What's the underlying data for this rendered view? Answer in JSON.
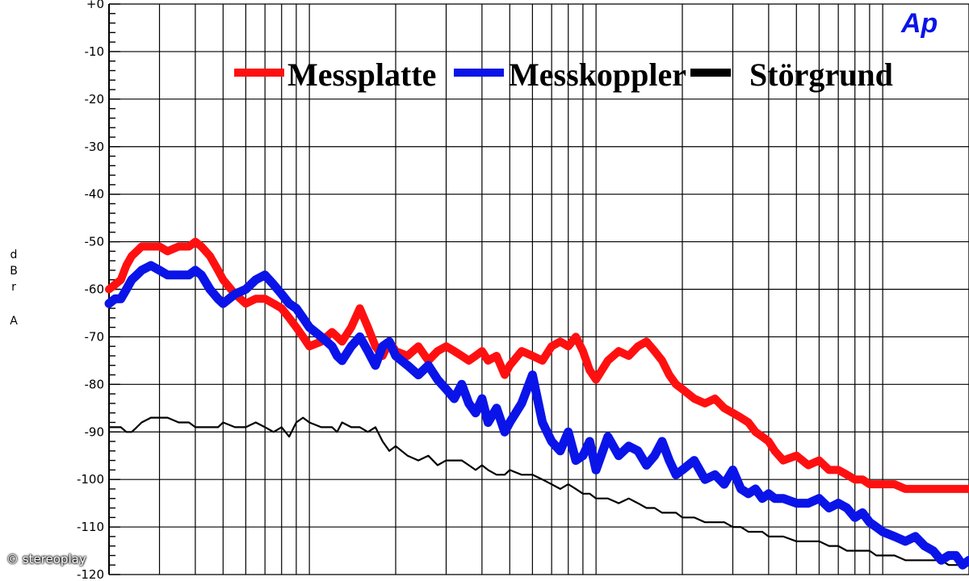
{
  "watermark": "© stereoplay",
  "logo": "Ap",
  "chart_data": {
    "type": "line",
    "title": "",
    "ylabel": "dBr A",
    "xlabel": "",
    "xscale": "log",
    "xlim": [
      20,
      20000
    ],
    "ylim": [
      -120,
      0
    ],
    "yticks": [
      "+0",
      "-10",
      "-20",
      "-30",
      "-40",
      "-50",
      "-60",
      "-70",
      "-80",
      "-90",
      "-100",
      "-110",
      "-120"
    ],
    "grid": true,
    "legend_position": "top",
    "colors": {
      "Messplatte": "#ff1010",
      "Messkoppler": "#0a14e8",
      "Störgrund": "#000000",
      "grid": "#000000"
    },
    "series": [
      {
        "name": "Messplatte",
        "x": [
          20,
          21,
          22,
          23,
          24,
          25,
          26,
          28,
          30,
          32,
          35,
          38,
          40,
          42,
          45,
          48,
          50,
          55,
          60,
          65,
          70,
          75,
          80,
          85,
          90,
          95,
          100,
          110,
          120,
          125,
          130,
          140,
          150,
          160,
          170,
          180,
          190,
          200,
          220,
          240,
          260,
          280,
          300,
          320,
          340,
          360,
          380,
          400,
          420,
          450,
          480,
          500,
          550,
          600,
          650,
          700,
          750,
          800,
          850,
          900,
          950,
          1000,
          1100,
          1200,
          1300,
          1400,
          1500,
          1600,
          1700,
          1800,
          1900,
          2000,
          2200,
          2400,
          2600,
          2800,
          3000,
          3200,
          3400,
          3600,
          3800,
          4000,
          4200,
          4500,
          5000,
          5500,
          6000,
          6500,
          7000,
          7500,
          8000,
          8500,
          9000,
          9500,
          10000,
          11000,
          12000,
          13000,
          14000,
          15000,
          16000,
          17000,
          18000,
          19000,
          20000
        ],
        "y": [
          -60,
          -59,
          -58,
          -55,
          -53,
          -52,
          -51,
          -51,
          -51,
          -52,
          -51,
          -51,
          -50,
          -51,
          -53,
          -56,
          -58,
          -61,
          -63,
          -62,
          -62,
          -63,
          -64,
          -66,
          -68,
          -70,
          -72,
          -71,
          -69,
          -70,
          -71,
          -68,
          -64,
          -68,
          -72,
          -74,
          -71,
          -73,
          -74,
          -72,
          -75,
          -73,
          -72,
          -73,
          -74,
          -75,
          -74,
          -73,
          -75,
          -74,
          -78,
          -76,
          -73,
          -74,
          -75,
          -72,
          -71,
          -72,
          -70,
          -73,
          -77,
          -79,
          -75,
          -73,
          -74,
          -72,
          -71,
          -73,
          -75,
          -78,
          -80,
          -81,
          -83,
          -84,
          -83,
          -85,
          -86,
          -87,
          -88,
          -90,
          -91,
          -92,
          -94,
          -96,
          -95,
          -97,
          -96,
          -98,
          -98,
          -99,
          -100,
          -100,
          -101,
          -101,
          -101,
          -101,
          -102,
          -102,
          -102,
          -102,
          -102,
          -102,
          -102,
          -102,
          -102
        ]
      },
      {
        "name": "Messkoppler",
        "x": [
          20,
          21,
          22,
          23,
          24,
          25,
          26,
          28,
          30,
          32,
          35,
          38,
          40,
          42,
          45,
          48,
          50,
          55,
          60,
          65,
          70,
          75,
          80,
          85,
          90,
          95,
          100,
          110,
          120,
          125,
          130,
          140,
          150,
          160,
          170,
          180,
          190,
          200,
          220,
          240,
          260,
          280,
          300,
          320,
          340,
          360,
          380,
          400,
          420,
          450,
          480,
          500,
          550,
          600,
          650,
          700,
          750,
          800,
          850,
          900,
          950,
          1000,
          1100,
          1200,
          1300,
          1400,
          1500,
          1600,
          1700,
          1800,
          1900,
          2000,
          2200,
          2400,
          2600,
          2800,
          3000,
          3200,
          3400,
          3600,
          3800,
          4000,
          4200,
          4500,
          5000,
          5500,
          6000,
          6500,
          7000,
          7500,
          8000,
          8500,
          9000,
          9500,
          10000,
          11000,
          12000,
          13000,
          14000,
          15000,
          16000,
          17000,
          18000,
          19000,
          20000
        ],
        "y": [
          -63,
          -62,
          -62,
          -60,
          -58,
          -57,
          -56,
          -55,
          -56,
          -57,
          -57,
          -57,
          -56,
          -57,
          -60,
          -62,
          -63,
          -61,
          -60,
          -58,
          -57,
          -59,
          -61,
          -63,
          -64,
          -66,
          -68,
          -70,
          -72,
          -74,
          -75,
          -72,
          -70,
          -73,
          -76,
          -72,
          -71,
          -74,
          -76,
          -78,
          -76,
          -79,
          -81,
          -83,
          -80,
          -84,
          -86,
          -83,
          -88,
          -85,
          -90,
          -88,
          -84,
          -78,
          -88,
          -92,
          -94,
          -90,
          -96,
          -95,
          -92,
          -98,
          -91,
          -95,
          -93,
          -94,
          -97,
          -95,
          -92,
          -96,
          -99,
          -98,
          -96,
          -100,
          -99,
          -101,
          -98,
          -102,
          -103,
          -102,
          -104,
          -103,
          -104,
          -104,
          -105,
          -105,
          -104,
          -106,
          -105,
          -106,
          -108,
          -107,
          -109,
          -110,
          -111,
          -112,
          -113,
          -112,
          -114,
          -115,
          -117,
          -116,
          -116,
          -118,
          -117
        ]
      },
      {
        "name": "Störgrund",
        "x": [
          20,
          21,
          22,
          23,
          24,
          25,
          26,
          28,
          30,
          32,
          35,
          38,
          40,
          42,
          45,
          48,
          50,
          55,
          60,
          65,
          70,
          75,
          80,
          85,
          90,
          95,
          100,
          110,
          120,
          125,
          130,
          140,
          150,
          160,
          170,
          180,
          190,
          200,
          220,
          240,
          260,
          280,
          300,
          320,
          340,
          360,
          380,
          400,
          420,
          450,
          480,
          500,
          550,
          600,
          650,
          700,
          750,
          800,
          850,
          900,
          950,
          1000,
          1100,
          1200,
          1300,
          1400,
          1500,
          1600,
          1700,
          1800,
          1900,
          2000,
          2200,
          2400,
          2600,
          2800,
          3000,
          3200,
          3400,
          3600,
          3800,
          4000,
          4200,
          4500,
          5000,
          5500,
          6000,
          6500,
          7000,
          7500,
          8000,
          8500,
          9000,
          9500,
          10000,
          11000,
          12000,
          13000,
          14000,
          15000,
          16000,
          17000,
          18000,
          19000,
          20000
        ],
        "y": [
          -89,
          -89,
          -89,
          -90,
          -90,
          -89,
          -88,
          -87,
          -87,
          -87,
          -88,
          -88,
          -89,
          -89,
          -89,
          -89,
          -88,
          -89,
          -89,
          -88,
          -89,
          -90,
          -89,
          -91,
          -88,
          -87,
          -88,
          -89,
          -89,
          -90,
          -88,
          -89,
          -89,
          -90,
          -89,
          -92,
          -94,
          -93,
          -95,
          -96,
          -95,
          -97,
          -96,
          -96,
          -96,
          -97,
          -98,
          -97,
          -98,
          -99,
          -99,
          -98,
          -99,
          -99,
          -100,
          -101,
          -102,
          -101,
          -102,
          -103,
          -103,
          -104,
          -104,
          -105,
          -104,
          -105,
          -106,
          -106,
          -107,
          -107,
          -107,
          -108,
          -108,
          -109,
          -109,
          -109,
          -110,
          -110,
          -111,
          -111,
          -111,
          -112,
          -112,
          -112,
          -113,
          -113,
          -113,
          -114,
          -114,
          -115,
          -115,
          -115,
          -115,
          -116,
          -116,
          -116,
          -117,
          -117,
          -117,
          -117,
          -117,
          -118,
          -118,
          -118,
          -118
        ]
      }
    ]
  }
}
